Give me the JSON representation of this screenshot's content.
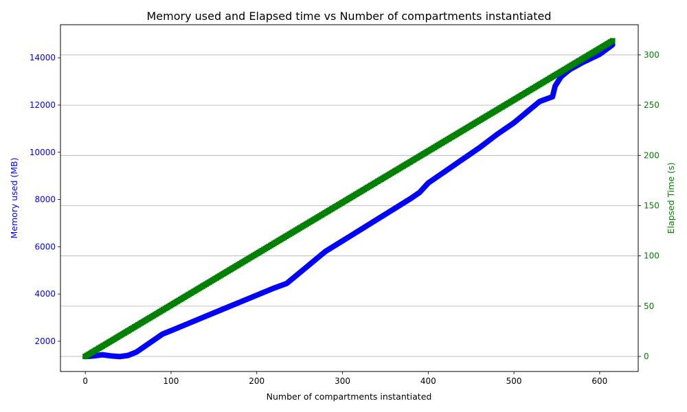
{
  "chart_data": {
    "type": "line",
    "title": "Memory used and Elapsed time vs Number of compartments instantiated",
    "xlabel": "Number of compartments instantiated",
    "xlim": [
      -29,
      645
    ],
    "xticks": [
      0,
      100,
      200,
      300,
      400,
      500,
      600
    ],
    "grid": "horizontal, right axis",
    "y_left": {
      "label": "Memory used (MB)",
      "color": "#0000ff",
      "lim": [
        720,
        15400
      ],
      "ticks": [
        2000,
        4000,
        6000,
        8000,
        10000,
        12000,
        14000
      ]
    },
    "y_right": {
      "label": "Elapsed Time (s)",
      "color": "#008000",
      "lim": [
        -15,
        330
      ],
      "ticks": [
        0,
        50,
        100,
        150,
        200,
        250,
        300
      ]
    },
    "series": [
      {
        "axis": "left",
        "color": "#0000ff",
        "x": [
          0,
          10,
          20,
          30,
          40,
          50,
          60,
          70,
          80,
          90,
          100,
          120,
          140,
          160,
          180,
          200,
          220,
          235,
          240,
          260,
          280,
          300,
          320,
          340,
          360,
          380,
          390,
          400,
          420,
          440,
          460,
          480,
          500,
          520,
          530,
          545,
          548,
          555,
          565,
          580,
          600,
          615
        ],
        "y": [
          1350,
          1380,
          1430,
          1380,
          1350,
          1400,
          1550,
          1800,
          2050,
          2300,
          2450,
          2750,
          3050,
          3350,
          3650,
          3950,
          4250,
          4450,
          4600,
          5200,
          5800,
          6250,
          6700,
          7150,
          7600,
          8050,
          8300,
          8700,
          9200,
          9700,
          10200,
          10750,
          11250,
          11850,
          12150,
          12350,
          12800,
          13200,
          13500,
          13800,
          14150,
          14550
        ]
      },
      {
        "axis": "right",
        "color": "#008000",
        "x": [
          0,
          615
        ],
        "y": [
          0,
          314
        ]
      }
    ]
  }
}
